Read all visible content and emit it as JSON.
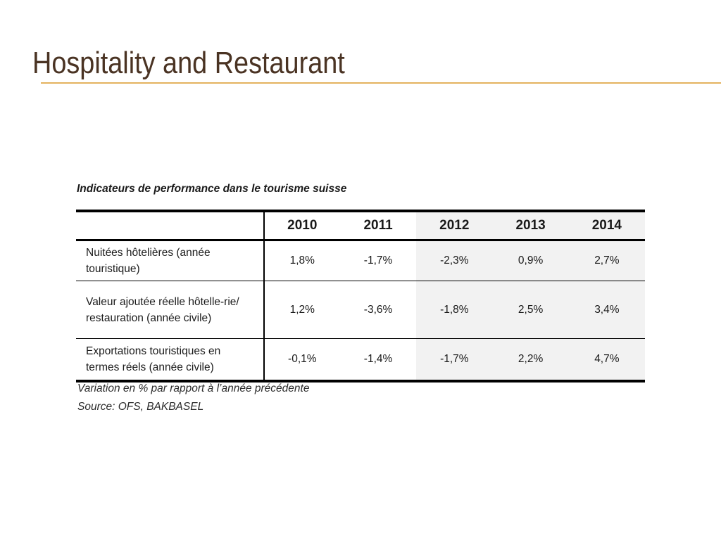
{
  "slide": {
    "title": "Hospitality and Restaurant"
  },
  "table": {
    "caption": "Indicateurs de performance dans le tourisme suisse",
    "years": [
      "2010",
      "2011",
      "2012",
      "2013",
      "2014"
    ],
    "rows": [
      {
        "label": "Nuitées hôtelières (année touristique)",
        "values": [
          "1,8%",
          "-1,7%",
          "-2,3%",
          "0,9%",
          "2,7%"
        ]
      },
      {
        "label": "Valeur ajoutée réelle hôtelle-rie/ restauration (année civile)",
        "values": [
          "1,2%",
          "-3,6%",
          "-1,8%",
          "2,5%",
          "3,4%"
        ]
      },
      {
        "label": "Exportations touristiques en termes réels (année civile)",
        "values": [
          "-0,1%",
          "-1,4%",
          "-1,7%",
          "2,2%",
          "4,7%"
        ]
      }
    ],
    "note": "Variation en % par rapport à l’année précédente",
    "source": "Source: OFS, BAKBASEL"
  },
  "colors": {
    "title": "#4a3323",
    "rule": "#e4b25e",
    "shaded_columns": "#f2f2f2"
  }
}
